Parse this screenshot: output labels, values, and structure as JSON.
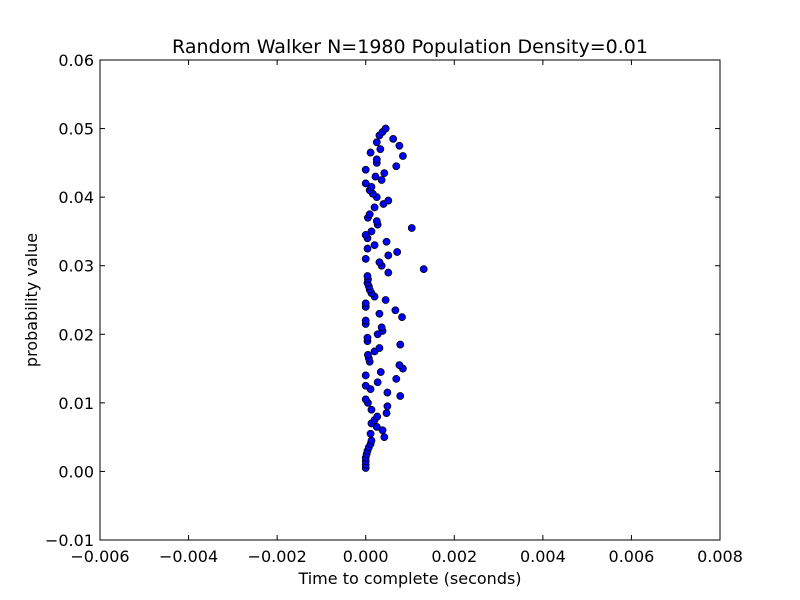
{
  "chart_data": {
    "type": "scatter",
    "title": "Random Walker N=1980 Population Density=0.01",
    "xlabel": "Time to complete (seconds)",
    "ylabel": "probability value",
    "xlim": [
      -0.006,
      0.008
    ],
    "ylim": [
      -0.01,
      0.06
    ],
    "xticks": [
      -0.006,
      -0.004,
      -0.002,
      0.0,
      0.002,
      0.004,
      0.006,
      0.008
    ],
    "xtick_labels": [
      "−0.006",
      "−0.004",
      "−0.002",
      "0.000",
      "0.002",
      "0.004",
      "0.006",
      "0.008"
    ],
    "yticks": [
      -0.01,
      0.0,
      0.01,
      0.02,
      0.03,
      0.04,
      0.05,
      0.06
    ],
    "ytick_labels": [
      "−0.01",
      "0.00",
      "0.01",
      "0.02",
      "0.03",
      "0.04",
      "0.05",
      "0.06"
    ],
    "grid": false,
    "marker_color": "#0000ff",
    "points": [
      [
        0.0,
        0.0005
      ],
      [
        0.0,
        0.001
      ],
      [
        0.0,
        0.0015
      ],
      [
        0.0,
        0.002
      ],
      [
        2e-05,
        0.0025
      ],
      [
        4e-05,
        0.003
      ],
      [
        7e-05,
        0.0035
      ],
      [
        0.00011,
        0.004
      ],
      [
        0.00013,
        0.0045
      ],
      [
        0.00011,
        0.0055
      ],
      [
        0.00042,
        0.005
      ],
      [
        0.00038,
        0.006
      ],
      [
        0.00025,
        0.0065
      ],
      [
        0.00013,
        0.007
      ],
      [
        0.0002,
        0.0075
      ],
      [
        0.00026,
        0.008
      ],
      [
        0.00013,
        0.009
      ],
      [
        5e-05,
        0.01
      ],
      [
        0.0,
        0.0105
      ],
      [
        0.00047,
        0.0085
      ],
      [
        0.00049,
        0.0095
      ],
      [
        0.00078,
        0.011
      ],
      [
        0.00049,
        0.0115
      ],
      [
        0.00011,
        0.012
      ],
      [
        0.0,
        0.0125
      ],
      [
        0.00027,
        0.013
      ],
      [
        0.00069,
        0.0135
      ],
      [
        0.0,
        0.014
      ],
      [
        0.00034,
        0.0145
      ],
      [
        0.00084,
        0.015
      ],
      [
        0.00076,
        0.0155
      ],
      [
        9e-05,
        0.016
      ],
      [
        7e-05,
        0.0165
      ],
      [
        5e-05,
        0.017
      ],
      [
        0.0002,
        0.0175
      ],
      [
        0.00031,
        0.018
      ],
      [
        0.00078,
        0.0185
      ],
      [
        4e-05,
        0.019
      ],
      [
        4e-05,
        0.0195
      ],
      [
        0.00027,
        0.02
      ],
      [
        0.00038,
        0.0205
      ],
      [
        0.00036,
        0.021
      ],
      [
        0.0,
        0.0215
      ],
      [
        0.0,
        0.022
      ],
      [
        0.00082,
        0.0225
      ],
      [
        0.00031,
        0.023
      ],
      [
        0.00067,
        0.0235
      ],
      [
        0.0,
        0.024
      ],
      [
        0.0,
        0.0245
      ],
      [
        0.00045,
        0.025
      ],
      [
        0.0002,
        0.0255
      ],
      [
        0.00013,
        0.026
      ],
      [
        9e-05,
        0.0265
      ],
      [
        7e-05,
        0.027
      ],
      [
        4e-05,
        0.0275
      ],
      [
        5e-05,
        0.028
      ],
      [
        4e-05,
        0.0285
      ],
      [
        0.00051,
        0.029
      ],
      [
        0.00131,
        0.0295
      ],
      [
        0.00036,
        0.03
      ],
      [
        0.00031,
        0.0305
      ],
      [
        0.0,
        0.031
      ],
      [
        0.00051,
        0.0315
      ],
      [
        0.00071,
        0.032
      ],
      [
        4e-05,
        0.0325
      ],
      [
        0.0002,
        0.033
      ],
      [
        0.00047,
        0.0335
      ],
      [
        4e-05,
        0.034
      ],
      [
        0.0,
        0.0345
      ],
      [
        0.00013,
        0.035
      ],
      [
        0.00104,
        0.0355
      ],
      [
        0.00027,
        0.036
      ],
      [
        0.00025,
        0.0365
      ],
      [
        5e-05,
        0.037
      ],
      [
        9e-05,
        0.0375
      ],
      [
        0.0002,
        0.0385
      ],
      [
        0.0004,
        0.039
      ],
      [
        0.00051,
        0.0395
      ],
      [
        0.00025,
        0.04
      ],
      [
        0.00016,
        0.0405
      ],
      [
        9e-05,
        0.041
      ],
      [
        0.00013,
        0.0415
      ],
      [
        0.0,
        0.042
      ],
      [
        0.00036,
        0.0425
      ],
      [
        0.00022,
        0.043
      ],
      [
        0.00042,
        0.0435
      ],
      [
        0.0,
        0.044
      ],
      [
        0.00069,
        0.0445
      ],
      [
        0.00025,
        0.045
      ],
      [
        0.00025,
        0.0455
      ],
      [
        0.00084,
        0.046
      ],
      [
        0.00011,
        0.0465
      ],
      [
        0.00033,
        0.047
      ],
      [
        0.00076,
        0.0475
      ],
      [
        0.00025,
        0.048
      ],
      [
        0.00062,
        0.0485
      ],
      [
        0.00031,
        0.049
      ],
      [
        0.00038,
        0.0495
      ],
      [
        0.00045,
        0.05
      ]
    ]
  }
}
